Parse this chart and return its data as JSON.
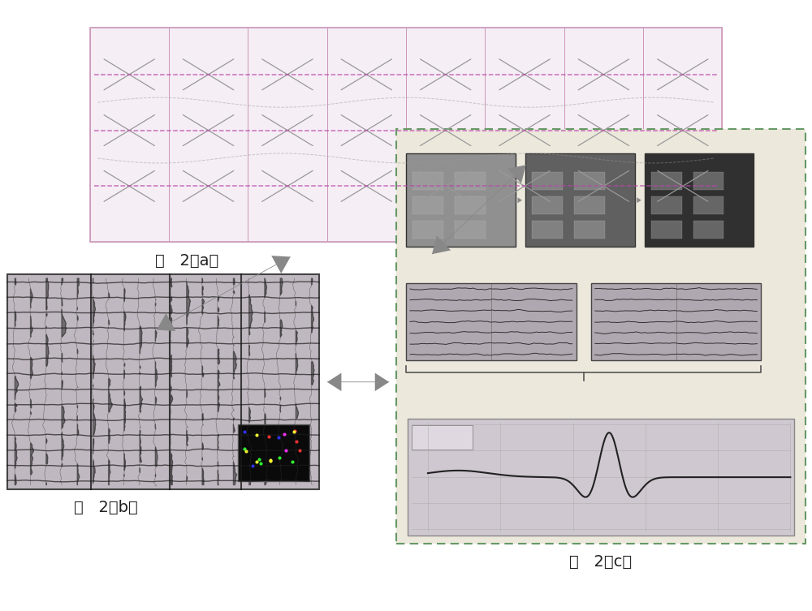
{
  "bg_color": "#ffffff",
  "fig_width": 10.0,
  "fig_height": 7.53,
  "label_a": "图   2（a）",
  "label_b": "图   2（b）",
  "label_c": "图   2（c）",
  "arrow_color": "#888888",
  "dash_box_color": "#669966",
  "panel_bg_a_color": "#f5eef5",
  "panel_border_a": "#cc99bb",
  "panel_bg_b_color": "#c0b8c0",
  "panel_bg_c_color": "#ece8dc",
  "seismic_line_color": "#222222",
  "thumb_colors": [
    "#909090",
    "#606060",
    "#303030"
  ],
  "wavelet_bg": "#d0c8d0",
  "label_fontsize": 14
}
